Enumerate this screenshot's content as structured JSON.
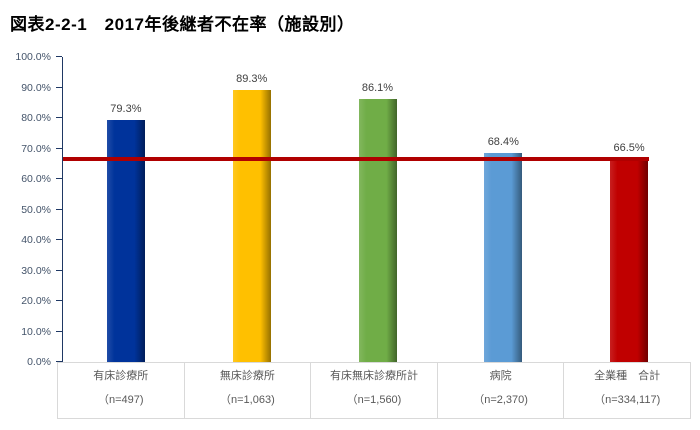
{
  "title": "図表2-2-1　2017年後継者不在率（施設別）",
  "chart_data": {
    "type": "bar",
    "title": "図表2-2-1　2017年後継者不在率（施設別）",
    "categories": [
      "有床診療所",
      "無床診療所",
      "有床無床診療所計",
      "病院",
      "全業種　合計"
    ],
    "category_sublabels": [
      "（n=497)",
      "（n=1,063)",
      "（n=1,560)",
      "（n=2,370)",
      "（n=334,117)"
    ],
    "series": [
      {
        "name": "後継者不在率",
        "values": [
          79.3,
          89.3,
          86.1,
          68.4,
          66.5
        ]
      }
    ],
    "data_labels": [
      "79.3%",
      "89.3%",
      "86.1%",
      "68.4%",
      "66.5%"
    ],
    "bar_colors": [
      "#00339B",
      "#FFC000",
      "#70AD47",
      "#5B9BD5",
      "#C00000"
    ],
    "reference_line": {
      "value": 66.5,
      "color": "#B00000"
    },
    "xlabel": "",
    "ylabel": "",
    "ylim": [
      0,
      100
    ],
    "ytick_step": 10,
    "ytick_labels": [
      "0.0%",
      "10.0%",
      "20.0%",
      "30.0%",
      "40.0%",
      "50.0%",
      "60.0%",
      "70.0%",
      "80.0%",
      "90.0%",
      "100.0%"
    ],
    "grid": false,
    "legend": false,
    "colors": {
      "axis_line": "#1F3864",
      "ytick_text": "#44546A",
      "data_label_text": "#404040",
      "category_text": "#595959",
      "table_border": "#D9D9D9"
    }
  }
}
